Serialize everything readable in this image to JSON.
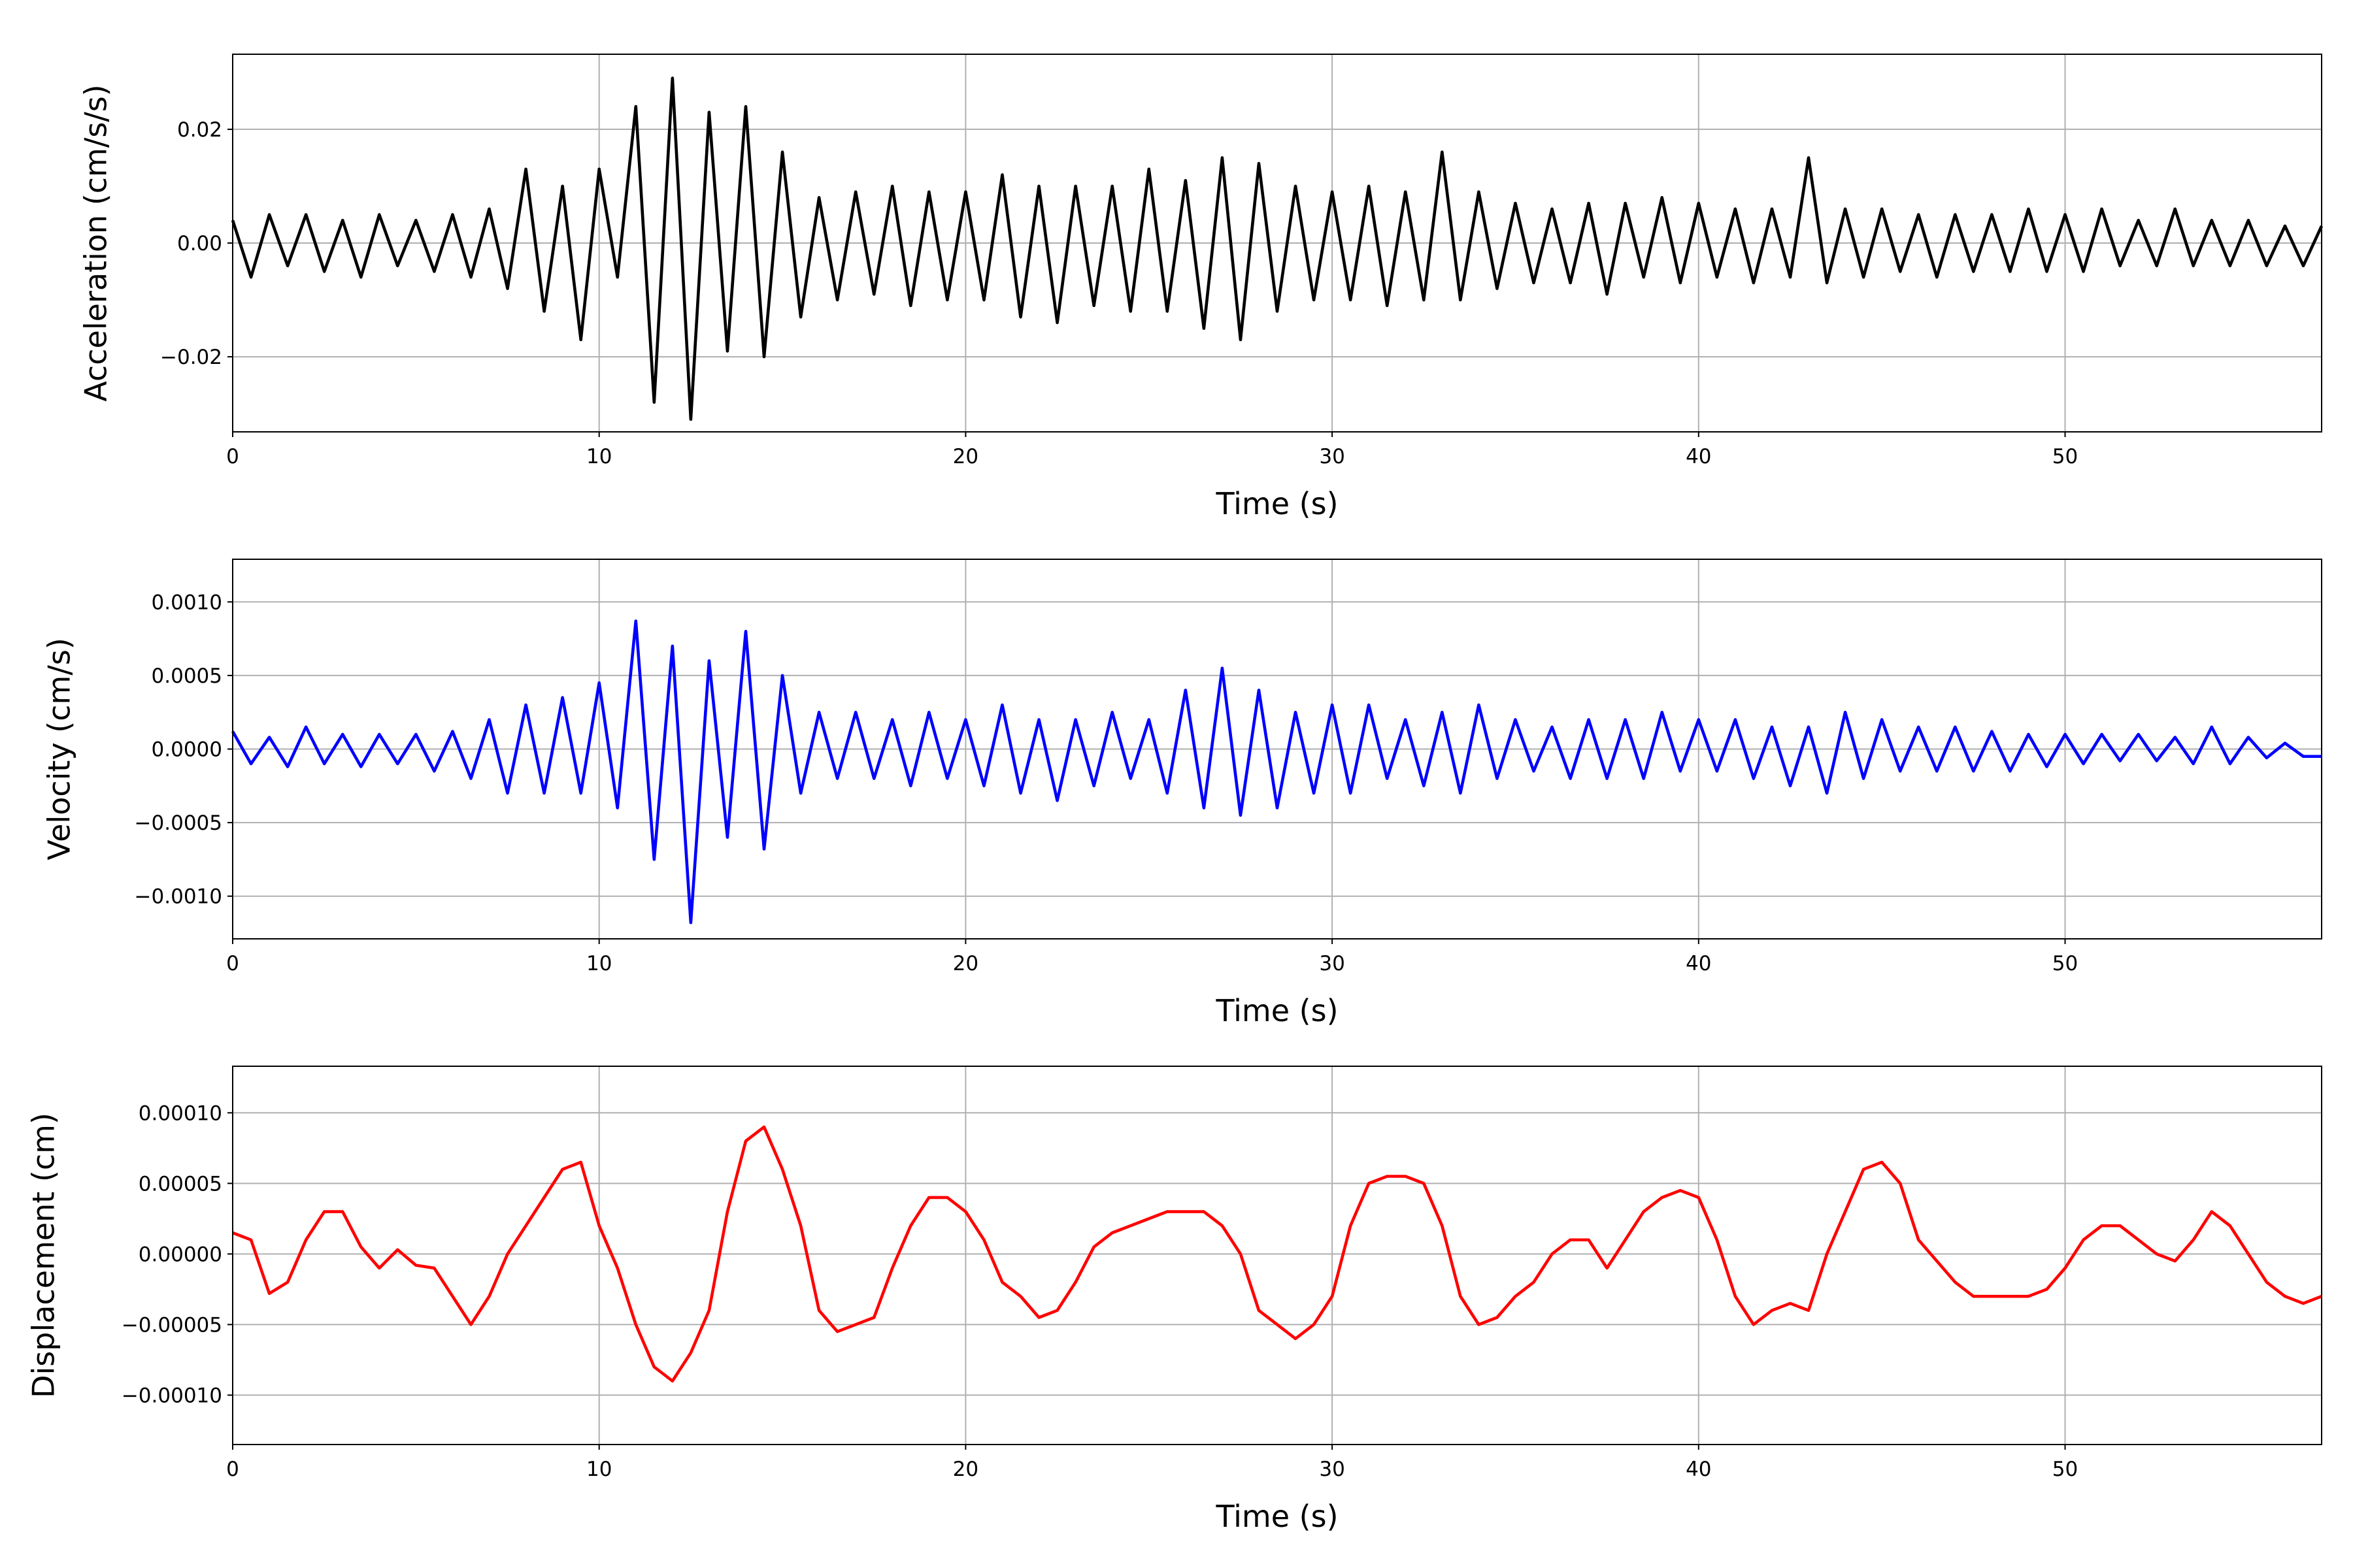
{
  "chart_data": [
    {
      "type": "line",
      "ylabel": "Acceleration (cm/s/s)",
      "xlabel": "Time (s)",
      "color": "#000000",
      "grid": true,
      "xlim": [
        0,
        57
      ],
      "xticks": [
        0,
        10,
        20,
        30,
        40,
        50
      ],
      "ylim": [
        -0.0332,
        0.0332
      ],
      "yticks": [
        {
          "value": -0.02,
          "label": "−0.02"
        },
        {
          "value": 0,
          "label": "0.00"
        },
        0.02
      ],
      "x": [
        0,
        0.5,
        1,
        1.5,
        2,
        2.5,
        3,
        3.5,
        4,
        4.5,
        5,
        5.5,
        6,
        6.5,
        7,
        7.5,
        8,
        8.5,
        9,
        9.5,
        10,
        10.5,
        11,
        11.5,
        12,
        12.5,
        13,
        13.5,
        14,
        14.5,
        15,
        15.5,
        16,
        16.5,
        17,
        17.5,
        18,
        18.5,
        19,
        19.5,
        20,
        20.5,
        21,
        21.5,
        22,
        22.5,
        23,
        23.5,
        24,
        24.5,
        25,
        25.5,
        26,
        26.5,
        27,
        27.5,
        28,
        28.5,
        29,
        29.5,
        30,
        30.5,
        31,
        31.5,
        32,
        32.5,
        33,
        33.5,
        34,
        34.5,
        35,
        35.5,
        36,
        36.5,
        37,
        37.5,
        38,
        38.5,
        39,
        39.5,
        40,
        40.5,
        41,
        41.5,
        42,
        42.5,
        43,
        43.5,
        44,
        44.5,
        45,
        45.5,
        46,
        46.5,
        47,
        47.5,
        48,
        48.5,
        49,
        49.5,
        50,
        50.5,
        51,
        51.5,
        52,
        52.5,
        53,
        53.5,
        54,
        54.5,
        55,
        55.5,
        56,
        56.5,
        57
      ],
      "values": [
        0.004,
        -0.006,
        0.005,
        -0.004,
        0.005,
        -0.005,
        0.004,
        -0.006,
        0.005,
        -0.004,
        0.004,
        -0.005,
        0.005,
        -0.006,
        0.006,
        -0.008,
        0.013,
        -0.012,
        0.01,
        -0.017,
        0.013,
        -0.006,
        0.024,
        -0.028,
        0.029,
        -0.031,
        0.023,
        -0.019,
        0.024,
        -0.02,
        0.016,
        -0.013,
        0.008,
        -0.01,
        0.009,
        -0.009,
        0.01,
        -0.011,
        0.009,
        -0.01,
        0.009,
        -0.01,
        0.012,
        -0.013,
        0.01,
        -0.014,
        0.01,
        -0.011,
        0.01,
        -0.012,
        0.013,
        -0.012,
        0.011,
        -0.015,
        0.015,
        -0.017,
        0.014,
        -0.012,
        0.01,
        -0.01,
        0.009,
        -0.01,
        0.01,
        -0.011,
        0.009,
        -0.01,
        0.016,
        -0.01,
        0.009,
        -0.008,
        0.007,
        -0.007,
        0.006,
        -0.007,
        0.007,
        -0.009,
        0.007,
        -0.006,
        0.008,
        -0.007,
        0.007,
        -0.006,
        0.006,
        -0.007,
        0.006,
        -0.006,
        0.015,
        -0.007,
        0.006,
        -0.006,
        0.006,
        -0.005,
        0.005,
        -0.006,
        0.005,
        -0.005,
        0.005,
        -0.005,
        0.006,
        -0.005,
        0.005,
        -0.005,
        0.006,
        -0.004,
        0.004,
        -0.004,
        0.006,
        -0.004,
        0.004,
        -0.004,
        0.004,
        -0.004,
        0.003,
        -0.004,
        0.003
      ]
    },
    {
      "type": "line",
      "ylabel": "Velocity (cm/s)",
      "xlabel": "Time (s)",
      "color": "#0000ff",
      "grid": true,
      "xlim": [
        0,
        57
      ],
      "xticks": [
        0,
        10,
        20,
        30,
        40,
        50
      ],
      "ylim": [
        -0.00129,
        0.00129
      ],
      "yticks": [
        {
          "value": -0.001,
          "label": "−0.0010"
        },
        {
          "value": -0.0005,
          "label": "−0.0005"
        },
        {
          "value": 0,
          "label": "0.0000"
        },
        {
          "value": 0.0005,
          "label": "0.0005"
        },
        {
          "value": 0.001,
          "label": "0.0010"
        }
      ],
      "x": [
        0,
        0.5,
        1,
        1.5,
        2,
        2.5,
        3,
        3.5,
        4,
        4.5,
        5,
        5.5,
        6,
        6.5,
        7,
        7.5,
        8,
        8.5,
        9,
        9.5,
        10,
        10.5,
        11,
        11.5,
        12,
        12.5,
        13,
        13.5,
        14,
        14.5,
        15,
        15.5,
        16,
        16.5,
        17,
        17.5,
        18,
        18.5,
        19,
        19.5,
        20,
        20.5,
        21,
        21.5,
        22,
        22.5,
        23,
        23.5,
        24,
        24.5,
        25,
        25.5,
        26,
        26.5,
        27,
        27.5,
        28,
        28.5,
        29,
        29.5,
        30,
        30.5,
        31,
        31.5,
        32,
        32.5,
        33,
        33.5,
        34,
        34.5,
        35,
        35.5,
        36,
        36.5,
        37,
        37.5,
        38,
        38.5,
        39,
        39.5,
        40,
        40.5,
        41,
        41.5,
        42,
        42.5,
        43,
        43.5,
        44,
        44.5,
        45,
        45.5,
        46,
        46.5,
        47,
        47.5,
        48,
        48.5,
        49,
        49.5,
        50,
        50.5,
        51,
        51.5,
        52,
        52.5,
        53,
        53.5,
        54,
        54.5,
        55,
        55.5,
        56,
        56.5,
        57
      ],
      "values": [
        0.00012,
        -0.0001,
        8e-05,
        -0.00012,
        0.00015,
        -0.0001,
        0.0001,
        -0.00012,
        0.0001,
        -0.0001,
        0.0001,
        -0.00015,
        0.00012,
        -0.0002,
        0.0002,
        -0.0003,
        0.0003,
        -0.0003,
        0.00035,
        -0.0003,
        0.00045,
        -0.0004,
        0.00087,
        -0.00075,
        0.0007,
        -0.00118,
        0.0006,
        -0.0006,
        0.0008,
        -0.00068,
        0.0005,
        -0.0003,
        0.00025,
        -0.0002,
        0.00025,
        -0.0002,
        0.0002,
        -0.00025,
        0.00025,
        -0.0002,
        0.0002,
        -0.00025,
        0.0003,
        -0.0003,
        0.0002,
        -0.00035,
        0.0002,
        -0.00025,
        0.00025,
        -0.0002,
        0.0002,
        -0.0003,
        0.0004,
        -0.0004,
        0.00055,
        -0.00045,
        0.0004,
        -0.0004,
        0.00025,
        -0.0003,
        0.0003,
        -0.0003,
        0.0003,
        -0.0002,
        0.0002,
        -0.00025,
        0.00025,
        -0.0003,
        0.0003,
        -0.0002,
        0.0002,
        -0.00015,
        0.00015,
        -0.0002,
        0.0002,
        -0.0002,
        0.0002,
        -0.0002,
        0.00025,
        -0.00015,
        0.0002,
        -0.00015,
        0.0002,
        -0.0002,
        0.00015,
        -0.00025,
        0.00015,
        -0.0003,
        0.00025,
        -0.0002,
        0.0002,
        -0.00015,
        0.00015,
        -0.00015,
        0.00015,
        -0.00015,
        0.00012,
        -0.00015,
        0.0001,
        -0.00012,
        0.0001,
        -0.0001,
        0.0001,
        -8e-05,
        0.0001,
        -8e-05,
        8e-05,
        -0.0001,
        0.00015,
        -0.0001,
        8e-05,
        -6e-05,
        4e-05,
        -5e-05,
        -5e-05
      ]
    },
    {
      "type": "line",
      "ylabel": "Displacement (cm)",
      "xlabel": "Time (s)",
      "color": "#ff0000",
      "grid": true,
      "xlim": [
        0,
        57
      ],
      "xticks": [
        0,
        10,
        20,
        30,
        40,
        50
      ],
      "ylim": [
        -0.000135,
        0.000133
      ],
      "yticks": [
        {
          "value": -0.0001,
          "label": "−0.00010"
        },
        {
          "value": -5e-05,
          "label": "−0.00005"
        },
        {
          "value": 0,
          "label": "0.00000"
        },
        {
          "value": 5e-05,
          "label": "0.00005"
        },
        {
          "value": 0.0001,
          "label": "0.00010"
        }
      ],
      "x": [
        0,
        0.5,
        1,
        1.5,
        2,
        2.5,
        3,
        3.5,
        4,
        4.5,
        5,
        5.5,
        6,
        6.5,
        7,
        7.5,
        8,
        8.5,
        9,
        9.5,
        10,
        10.5,
        11,
        11.5,
        12,
        12.5,
        13,
        13.5,
        14,
        14.5,
        15,
        15.5,
        16,
        16.5,
        17,
        17.5,
        18,
        18.5,
        19,
        19.5,
        20,
        20.5,
        21,
        21.5,
        22,
        22.5,
        23,
        23.5,
        24,
        24.5,
        25,
        25.5,
        26,
        26.5,
        27,
        27.5,
        28,
        28.5,
        29,
        29.5,
        30,
        30.5,
        31,
        31.5,
        32,
        32.5,
        33,
        33.5,
        34,
        34.5,
        35,
        35.5,
        36,
        36.5,
        37,
        37.5,
        38,
        38.5,
        39,
        39.5,
        40,
        40.5,
        41,
        41.5,
        42,
        42.5,
        43,
        43.5,
        44,
        44.5,
        45,
        45.5,
        46,
        46.5,
        47,
        47.5,
        48,
        48.5,
        49,
        49.5,
        50,
        50.5,
        51,
        51.5,
        52,
        52.5,
        53,
        53.5,
        54,
        54.5,
        55,
        55.5,
        56,
        56.5,
        57
      ],
      "values": [
        1.5e-05,
        1e-05,
        -2.8e-05,
        -2e-05,
        1e-05,
        3e-05,
        3e-05,
        5e-06,
        -1e-05,
        3e-06,
        -8e-06,
        -1e-05,
        -3e-05,
        -5e-05,
        -3e-05,
        0,
        2e-05,
        4e-05,
        6e-05,
        6.5e-05,
        2e-05,
        -1e-05,
        -5e-05,
        -8e-05,
        -9e-05,
        -7e-05,
        -4e-05,
        3e-05,
        8e-05,
        9e-05,
        6e-05,
        2e-05,
        -4e-05,
        -5.5e-05,
        -5e-05,
        -4.5e-05,
        -1e-05,
        2e-05,
        4e-05,
        4e-05,
        3e-05,
        1e-05,
        -2e-05,
        -3e-05,
        -4.5e-05,
        -4e-05,
        -2e-05,
        5e-06,
        1.5e-05,
        2e-05,
        2.5e-05,
        3e-05,
        3e-05,
        3e-05,
        2e-05,
        0,
        -4e-05,
        -5e-05,
        -6e-05,
        -5e-05,
        -3e-05,
        2e-05,
        5e-05,
        5.5e-05,
        5.5e-05,
        5e-05,
        2e-05,
        -3e-05,
        -5e-05,
        -4.5e-05,
        -3e-05,
        -2e-05,
        0,
        1e-05,
        1e-05,
        -1e-05,
        1e-05,
        3e-05,
        4e-05,
        4.5e-05,
        4e-05,
        1e-05,
        -3e-05,
        -5e-05,
        -4e-05,
        -3.5e-05,
        -4e-05,
        0,
        3e-05,
        6e-05,
        6.5e-05,
        5e-05,
        1e-05,
        -5e-06,
        -2e-05,
        -3e-05,
        -3e-05,
        -3e-05,
        -3e-05,
        -2.5e-05,
        -1e-05,
        1e-05,
        2e-05,
        2e-05,
        1e-05,
        0,
        -5e-06,
        1e-05,
        3e-05,
        2e-05,
        0,
        -2e-05,
        -3e-05,
        -3.5e-05,
        -3e-05
      ]
    }
  ]
}
